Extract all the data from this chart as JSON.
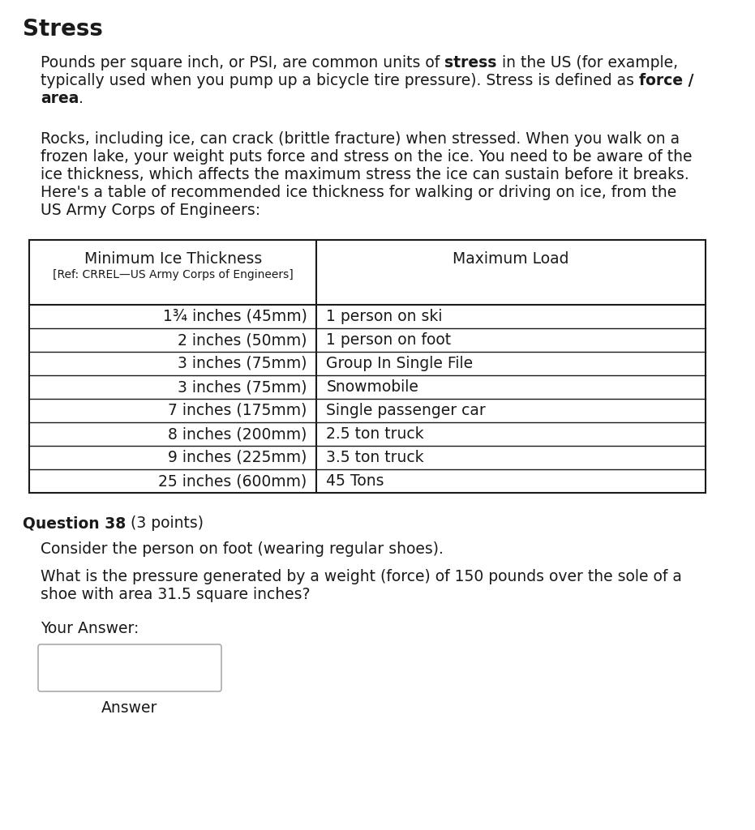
{
  "title": "Stress",
  "para1_line1_normal": "Pounds per square inch, or PSI, are common units of ",
  "para1_line1_bold": "stress",
  "para1_line1_normal2": " in the US (for example,",
  "para1_line2_normal": "typically used when you pump up a bicycle tire pressure). Stress is defined as ",
  "para1_line2_bold": "force /",
  "para1_line3_bold": "area",
  "para1_line3_normal": ".",
  "para2_lines": [
    "Rocks, including ice, can crack (brittle fracture) when stressed. When you walk on a",
    "frozen lake, your weight puts force and stress on the ice. You need to be aware of the",
    "ice thickness, which affects the maximum stress the ice can sustain before it breaks.",
    "Here's a table of recommended ice thickness for walking or driving on ice, from the",
    "US Army Corps of Engineers:"
  ],
  "table_col1_header": "Minimum Ice Thickness",
  "table_col1_subheader": "[Ref: CRREL—US Army Corps of Engineers]",
  "table_col2_header": "Maximum Load",
  "table_rows": [
    [
      "1¾ inches (45mm)",
      "1 person on ski"
    ],
    [
      "2 inches (50mm)",
      "1 person on foot"
    ],
    [
      "3 inches (75mm)",
      "Group In Single File"
    ],
    [
      "3 inches (75mm)",
      "Snowmobile"
    ],
    [
      "7 inches (175mm)",
      "Single passenger car"
    ],
    [
      "8 inches (200mm)",
      "2.5 ton truck"
    ],
    [
      "9 inches (225mm)",
      "3.5 ton truck"
    ],
    [
      "25 inches (600mm)",
      "45 Tons"
    ]
  ],
  "q_bold": "Question 38",
  "q_normal": " (3 points)",
  "q_body1": "Consider the person on foot (wearing regular shoes).",
  "q_body2_line1": "What is the pressure generated by a weight (force) of 150 pounds over the sole of a",
  "q_body2_line2": "shoe with area 31.5 square inches?",
  "your_answer": "Your Answer:",
  "answer_btn": "Answer",
  "bg": "#ffffff",
  "fg": "#1a1a1a",
  "title_fs": 20,
  "body_fs": 13.5,
  "table_fs": 13.5,
  "sub_fs": 10,
  "q_fs": 13.5
}
